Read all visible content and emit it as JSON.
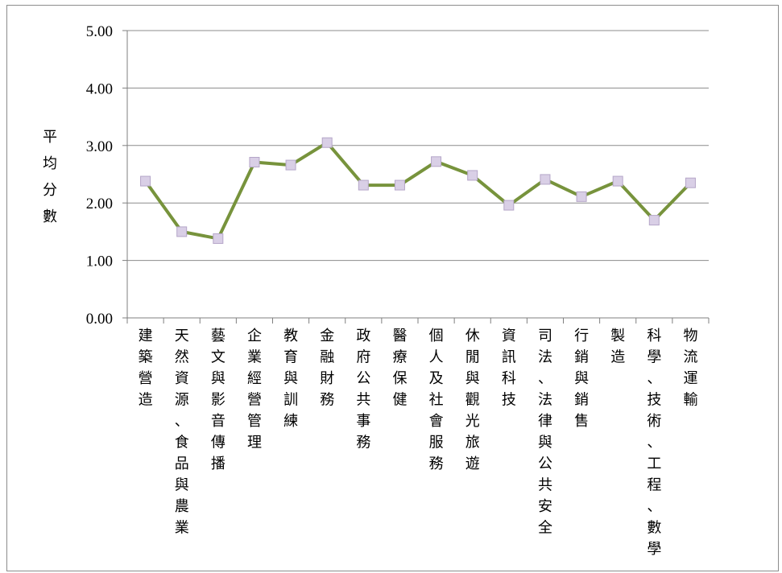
{
  "chart_data": {
    "type": "line",
    "ylabel": "平均分數",
    "ylim": [
      0,
      5
    ],
    "yticks": [
      "0.00",
      "1.00",
      "2.00",
      "3.00",
      "4.00",
      "5.00"
    ],
    "categories": [
      "建築營造",
      "天然資源、食品與農業",
      "藝文與影音傳播",
      "企業經營管理",
      "教育與訓練",
      "金融財務",
      "政府公共事務",
      "醫療保健",
      "個人及社會服務",
      "休閒與觀光旅遊",
      "資訊科技",
      "司法、法律與公共安全",
      "行銷與銷售",
      "製造",
      "科學、技術、工程、數學",
      "物流運輸"
    ],
    "series": [
      {
        "values": [
          2.38,
          1.5,
          1.38,
          2.71,
          2.66,
          3.05,
          2.31,
          2.31,
          2.72,
          2.48,
          1.96,
          2.41,
          2.11,
          2.38,
          1.7,
          2.35
        ]
      }
    ],
    "grid": true,
    "colors": {
      "line": "#77933c",
      "marker": "#d9cfe6",
      "marker_stroke": "#b5a6c8",
      "grid": "#8c8c8c",
      "axis": "#7f7f7f"
    }
  }
}
